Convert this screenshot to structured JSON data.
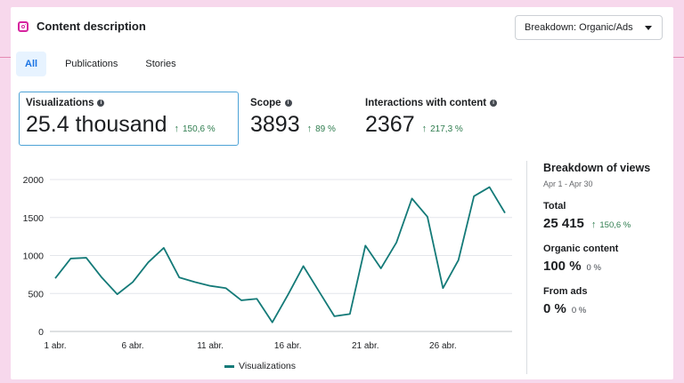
{
  "header": {
    "title": "Content description",
    "icon": "instagram-icon"
  },
  "dropdown": {
    "label": "Breakdown: Organic/Ads"
  },
  "tabs": [
    {
      "label": "All",
      "active": true
    },
    {
      "label": "Publications",
      "active": false
    },
    {
      "label": "Stories",
      "active": false
    }
  ],
  "metrics": [
    {
      "label": "Visualizations",
      "value": "25.4 thousand",
      "delta": "150,6 %"
    },
    {
      "label": "Scope",
      "value": "3893",
      "delta": "89 %"
    },
    {
      "label": "Interactions with content",
      "value": "2367",
      "delta": "217,3 %"
    }
  ],
  "side": {
    "title": "Breakdown of views",
    "date_range": "Apr 1 - Apr 30",
    "total_label": "Total",
    "total_value": "25 415",
    "total_delta": "150,6 %",
    "organic_label": "Organic content",
    "organic_value": "100 %",
    "organic_pct": "0 %",
    "ads_label": "From ads",
    "ads_value": "0 %",
    "ads_pct": "0 %"
  },
  "chart_data": {
    "type": "line",
    "x": [
      1,
      2,
      3,
      4,
      5,
      6,
      7,
      8,
      9,
      10,
      11,
      12,
      13,
      14,
      15,
      16,
      17,
      18,
      19,
      20,
      21,
      22,
      23,
      24,
      25,
      26,
      27,
      28,
      29,
      30
    ],
    "x_tick_values": [
      1,
      6,
      11,
      16,
      21,
      26
    ],
    "x_tick_labels": [
      "1 abr.",
      "6 abr.",
      "11 abr.",
      "16 abr.",
      "21 abr.",
      "26 abr."
    ],
    "ylim": [
      0,
      2000
    ],
    "y_ticks": [
      0,
      500,
      1000,
      1500,
      2000
    ],
    "grid": true,
    "legend": "bottom",
    "series": [
      {
        "name": "Visualizations",
        "color": "#147a78",
        "values": [
          700,
          960,
          970,
          710,
          490,
          650,
          910,
          1100,
          710,
          650,
          600,
          570,
          410,
          430,
          120,
          480,
          860,
          530,
          200,
          230,
          1130,
          830,
          1170,
          1750,
          1510,
          570,
          940,
          1780,
          1900,
          1560
        ]
      }
    ]
  }
}
